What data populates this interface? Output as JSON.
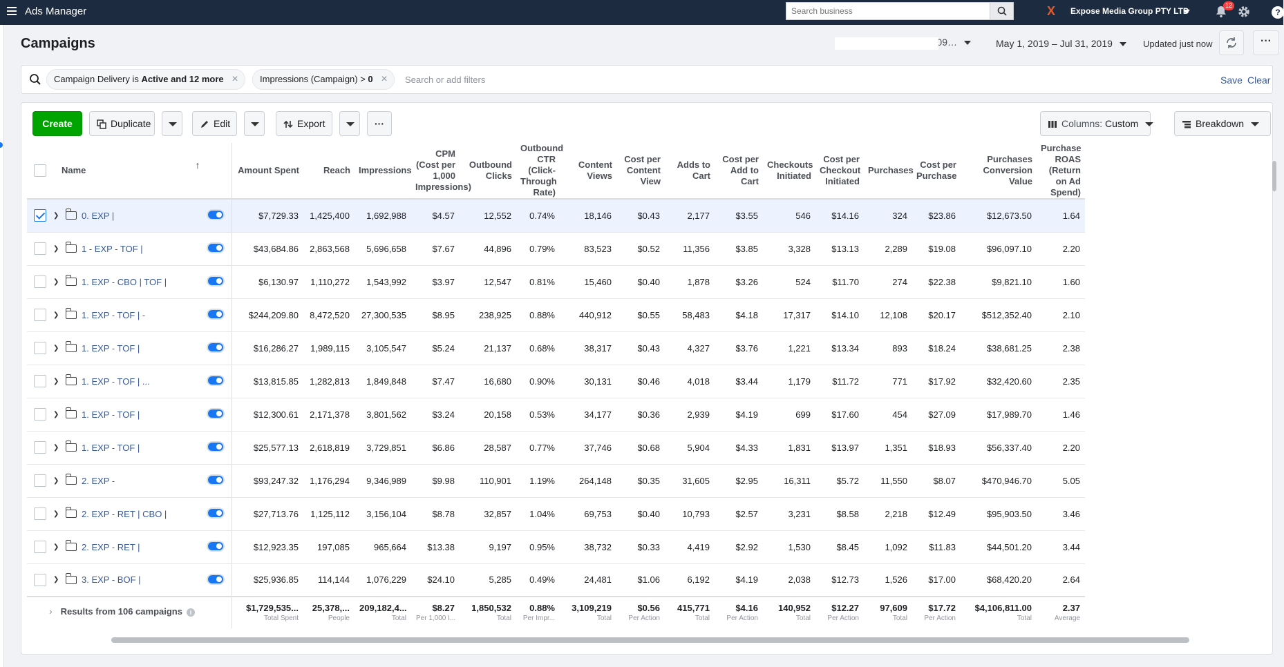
{
  "topbar": {
    "app_title": "Ads Manager",
    "search_placeholder": "Search business",
    "business_name": "Expose Media Group PTY LTD",
    "notification_count": "12",
    "help": "?"
  },
  "header": {
    "title": "Campaigns",
    "account_suffix": "…09…",
    "date_range": "May 1, 2019 – Jul 31, 2019",
    "updated": "Updated just now",
    "more": "···"
  },
  "filters": {
    "chip1_prefix": "Campaign Delivery is ",
    "chip1_bold": "Active and 12 more",
    "chip2_prefix": "Impressions (Campaign) > ",
    "chip2_bold": "0",
    "placeholder": "Search or add filters",
    "save": "Save",
    "clear": "Clear"
  },
  "toolbar": {
    "create": "Create",
    "duplicate": "Duplicate",
    "edit": "Edit",
    "export": "Export",
    "more": "···",
    "columns_prefix": "Columns: ",
    "columns_value": "Custom",
    "breakdown": "Breakdown"
  },
  "table": {
    "columns": [
      "Name",
      "Amount Spent",
      "Reach",
      "Impressions",
      "CPM (Cost per 1,000 Impressions)",
      "Outbound Clicks",
      "Outbound CTR (Click-Through Rate)",
      "Content Views",
      "Cost per Content View",
      "Adds to Cart",
      "Cost per Add to Cart",
      "Checkouts Initiated",
      "Cost per Checkout Initiated",
      "Purchases",
      "Cost per Purchase",
      "Purchases Conversion Value",
      "Purchase ROAS (Return on Ad Spend)"
    ],
    "rows": [
      {
        "name": "0. EXP |",
        "selected": true,
        "cells": [
          "$7,729.33",
          "1,425,400",
          "1,692,988",
          "$4.57",
          "12,552",
          "0.74%",
          "18,146",
          "$0.43",
          "2,177",
          "$3.55",
          "546",
          "$14.16",
          "324",
          "$23.86",
          "$12,673.50",
          "1.64"
        ]
      },
      {
        "name": "1 - EXP - TOF |",
        "selected": false,
        "cells": [
          "$43,684.86",
          "2,863,568",
          "5,696,658",
          "$7.67",
          "44,896",
          "0.79%",
          "83,523",
          "$0.52",
          "11,356",
          "$3.85",
          "3,328",
          "$13.13",
          "2,289",
          "$19.08",
          "$96,097.10",
          "2.20"
        ]
      },
      {
        "name": "1. EXP - CBO | TOF |",
        "selected": false,
        "cells": [
          "$6,130.97",
          "1,110,272",
          "1,543,992",
          "$3.97",
          "12,547",
          "0.81%",
          "15,460",
          "$0.40",
          "1,878",
          "$3.26",
          "524",
          "$11.70",
          "274",
          "$22.38",
          "$9,821.10",
          "1.60"
        ]
      },
      {
        "name": "1. EXP - TOF | -",
        "selected": false,
        "cells": [
          "$244,209.80",
          "8,472,520",
          "27,300,535",
          "$8.95",
          "238,925",
          "0.88%",
          "440,912",
          "$0.55",
          "58,483",
          "$4.18",
          "17,317",
          "$14.10",
          "12,108",
          "$20.17",
          "$512,352.40",
          "2.10"
        ]
      },
      {
        "name": "1. EXP - TOF |",
        "selected": false,
        "cells": [
          "$16,286.27",
          "1,989,115",
          "3,105,547",
          "$5.24",
          "21,137",
          "0.68%",
          "38,317",
          "$0.43",
          "4,327",
          "$3.76",
          "1,221",
          "$13.34",
          "893",
          "$18.24",
          "$38,681.25",
          "2.38"
        ]
      },
      {
        "name": "1. EXP - TOF | ...",
        "selected": false,
        "cells": [
          "$13,815.85",
          "1,282,813",
          "1,849,848",
          "$7.47",
          "16,680",
          "0.90%",
          "30,131",
          "$0.46",
          "4,018",
          "$3.44",
          "1,179",
          "$11.72",
          "771",
          "$17.92",
          "$32,420.60",
          "2.35"
        ]
      },
      {
        "name": "1. EXP - TOF |",
        "selected": false,
        "cells": [
          "$12,300.61",
          "2,171,378",
          "3,801,562",
          "$3.24",
          "20,158",
          "0.53%",
          "34,177",
          "$0.36",
          "2,939",
          "$4.19",
          "699",
          "$17.60",
          "454",
          "$27.09",
          "$17,989.70",
          "1.46"
        ]
      },
      {
        "name": "1. EXP - TOF |",
        "selected": false,
        "cells": [
          "$25,577.13",
          "2,618,819",
          "3,729,851",
          "$6.86",
          "28,587",
          "0.77%",
          "37,746",
          "$0.68",
          "5,904",
          "$4.33",
          "1,831",
          "$13.97",
          "1,351",
          "$18.93",
          "$56,337.40",
          "2.20"
        ]
      },
      {
        "name": "2. EXP -",
        "selected": false,
        "cells": [
          "$93,247.32",
          "1,176,294",
          "9,346,989",
          "$9.98",
          "110,901",
          "1.19%",
          "264,148",
          "$0.35",
          "31,605",
          "$2.95",
          "16,311",
          "$5.72",
          "11,550",
          "$8.07",
          "$470,946.70",
          "5.05"
        ]
      },
      {
        "name": "2. EXP - RET | CBO |",
        "selected": false,
        "cells": [
          "$27,713.76",
          "1,125,112",
          "3,156,104",
          "$8.78",
          "32,857",
          "1.04%",
          "69,753",
          "$0.40",
          "10,793",
          "$2.57",
          "3,231",
          "$8.58",
          "2,218",
          "$12.49",
          "$95,903.50",
          "3.46"
        ]
      },
      {
        "name": "2. EXP - RET |",
        "selected": false,
        "cells": [
          "$12,923.35",
          "197,085",
          "965,664",
          "$13.38",
          "9,197",
          "0.95%",
          "38,732",
          "$0.33",
          "4,419",
          "$2.92",
          "1,530",
          "$8.45",
          "1,092",
          "$11.83",
          "$44,501.20",
          "3.44"
        ]
      },
      {
        "name": "3. EXP - BOF |",
        "selected": false,
        "cells": [
          "$25,936.85",
          "114,144",
          "1,076,229",
          "$24.10",
          "5,285",
          "0.49%",
          "24,481",
          "$1.06",
          "6,192",
          "$4.19",
          "2,038",
          "$12.73",
          "1,526",
          "$17.00",
          "$68,420.20",
          "2.64"
        ]
      }
    ],
    "footer_label": "Results from 106 campaigns",
    "footer": [
      {
        "value": "$1,729,535...",
        "label": "Total Spent"
      },
      {
        "value": "25,378,...",
        "label": "People"
      },
      {
        "value": "209,182,4...",
        "label": "Total"
      },
      {
        "value": "$8.27",
        "label": "Per 1,000 I..."
      },
      {
        "value": "1,850,532",
        "label": "Total"
      },
      {
        "value": "0.88%",
        "label": "Per Impr..."
      },
      {
        "value": "3,109,219",
        "label": "Total"
      },
      {
        "value": "$0.56",
        "label": "Per Action"
      },
      {
        "value": "415,771",
        "label": "Total"
      },
      {
        "value": "$4.16",
        "label": "Per Action"
      },
      {
        "value": "140,952",
        "label": "Total"
      },
      {
        "value": "$12.27",
        "label": "Per Action"
      },
      {
        "value": "97,609",
        "label": "Total"
      },
      {
        "value": "$17.72",
        "label": "Per Action"
      },
      {
        "value": "$4,106,811.00",
        "label": "Total"
      },
      {
        "value": "2.37",
        "label": "Average"
      }
    ]
  }
}
